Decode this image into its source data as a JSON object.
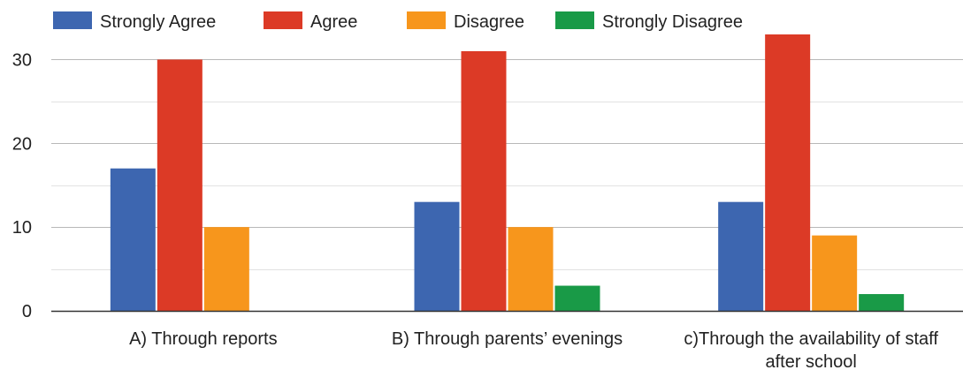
{
  "chart_data": {
    "type": "bar",
    "categories": [
      [
        "A) Through reports"
      ],
      [
        "B) Through parents’ evenings"
      ],
      [
        "c)Through the availability of staff",
        "after school"
      ]
    ],
    "series": [
      {
        "name": "Strongly Agree",
        "color": "#3d66b0",
        "values": [
          17,
          13,
          13
        ]
      },
      {
        "name": "Agree",
        "color": "#dc3a26",
        "values": [
          30,
          31,
          33
        ]
      },
      {
        "name": "Disagree",
        "color": "#f7961c",
        "values": [
          10,
          10,
          9
        ]
      },
      {
        "name": "Strongly Disagree",
        "color": "#199a47",
        "values": [
          0,
          3,
          2
        ]
      }
    ],
    "ylim": [
      0,
      35
    ],
    "yticks": [
      0,
      10,
      20,
      30
    ],
    "grid": true,
    "legend_position": "top",
    "title": "",
    "xlabel": "",
    "ylabel": ""
  }
}
